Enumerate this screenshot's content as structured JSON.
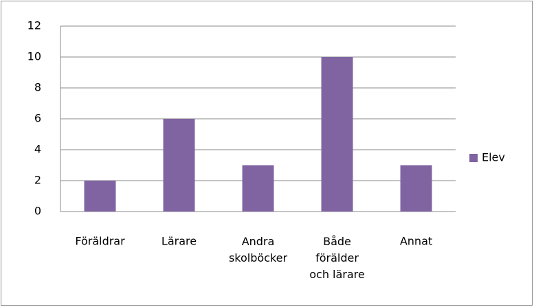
{
  "chart_data": {
    "type": "bar",
    "categories": [
      "Föräldrar",
      "Lärare",
      "Andra\nskolböcker",
      "Både\nförälder\noch lärare",
      "Annat"
    ],
    "series": [
      {
        "name": "Elev",
        "color": "#8064a2",
        "values": [
          2,
          6,
          3,
          10,
          3
        ]
      }
    ],
    "ylim": [
      0,
      12
    ],
    "yticks": [
      0,
      2,
      4,
      6,
      8,
      10,
      12
    ],
    "grid": true,
    "legend": "right"
  }
}
